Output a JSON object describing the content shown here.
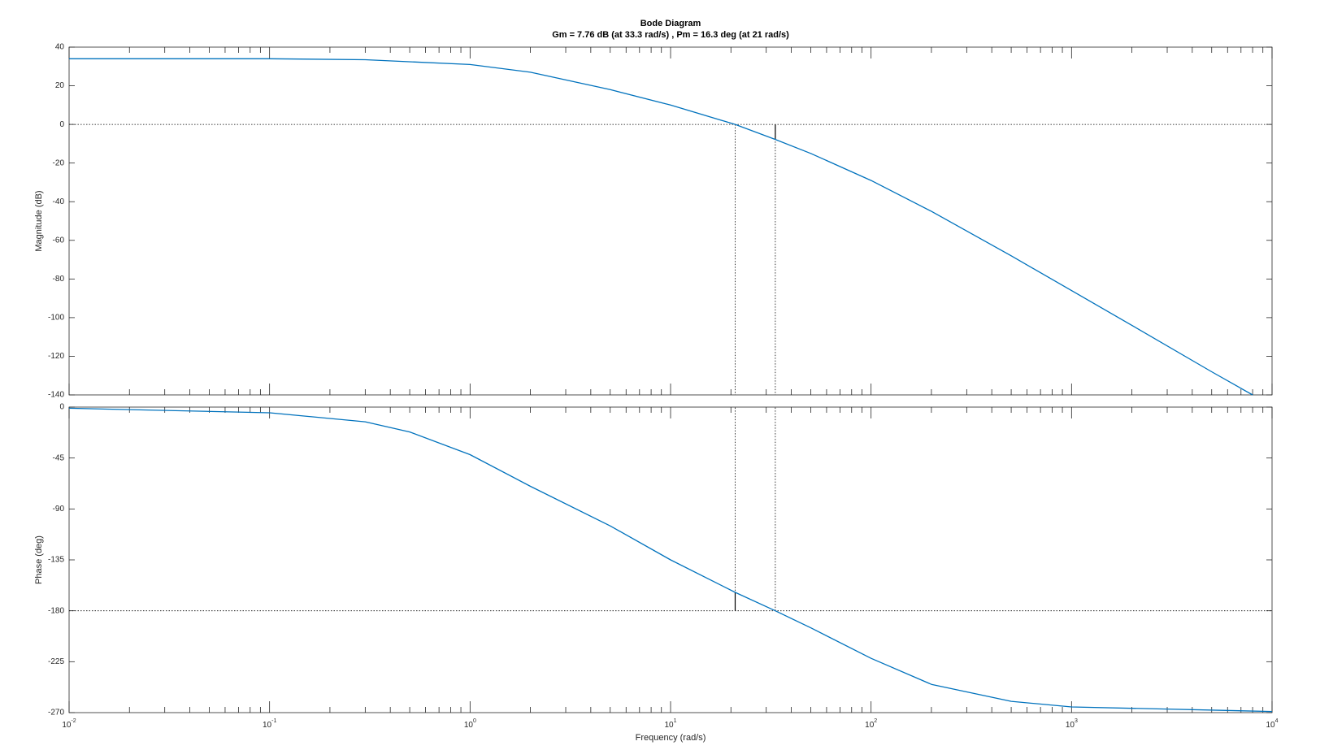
{
  "chart_data": [
    {
      "type": "line",
      "title": "Bode Diagram",
      "subtitle": "Gm = 7.76 dB (at 33.3 rad/s) ,  Pm = 16.3 deg (at 21 rad/s)",
      "ylabel": "Magnitude (dB)",
      "xscale": "log",
      "x": [
        0.01,
        0.1,
        0.3,
        1,
        2,
        5,
        10,
        21,
        33.3,
        50,
        100,
        200,
        500,
        1000,
        2000,
        5000,
        8000
      ],
      "values": [
        34,
        34,
        33.5,
        31,
        27,
        18,
        10,
        0,
        -7.76,
        -15,
        -29,
        -45,
        -68,
        -86,
        -104,
        -128,
        -140
      ],
      "color": "#0072bd",
      "xlim": [
        0.01,
        10000
      ],
      "ylim": [
        -140,
        40
      ],
      "yticks": [
        40,
        20,
        0,
        -20,
        -40,
        -60,
        -80,
        -100,
        -120,
        -140
      ],
      "crossover_x": [
        21,
        33.3
      ],
      "reference_y": 0,
      "margin_marker": {
        "x": 33.3,
        "y": [
          0,
          -7.76
        ]
      }
    },
    {
      "type": "line",
      "ylabel": "Phase (deg)",
      "xlabel": "Frequency  (rad/s)",
      "xscale": "log",
      "x": [
        0.01,
        0.1,
        0.3,
        0.5,
        1,
        2,
        5,
        10,
        21,
        33.3,
        50,
        100,
        200,
        500,
        1000,
        10000
      ],
      "values": [
        -1,
        -5,
        -13,
        -22,
        -42,
        -70,
        -105,
        -135,
        -163.7,
        -180,
        -195,
        -222,
        -245,
        -260,
        -265,
        -269
      ],
      "color": "#0072bd",
      "xlim": [
        0.01,
        10000
      ],
      "ylim": [
        -270,
        0
      ],
      "yticks": [
        0,
        -45,
        -90,
        -135,
        -180,
        -225,
        -270
      ],
      "xticks": [
        {
          "value": 0.01,
          "label": "10",
          "exponent": "-2"
        },
        {
          "value": 0.1,
          "label": "10",
          "exponent": "-1"
        },
        {
          "value": 1,
          "label": "10",
          "exponent": "0"
        },
        {
          "value": 10,
          "label": "10",
          "exponent": "1"
        },
        {
          "value": 100,
          "label": "10",
          "exponent": "2"
        },
        {
          "value": 1000,
          "label": "10",
          "exponent": "3"
        },
        {
          "value": 10000,
          "label": "10",
          "exponent": "4"
        }
      ],
      "crossover_x": [
        21,
        33.3
      ],
      "reference_y": -180,
      "margin_marker": {
        "x": 21,
        "y": [
          -180,
          -163.7
        ]
      }
    }
  ]
}
